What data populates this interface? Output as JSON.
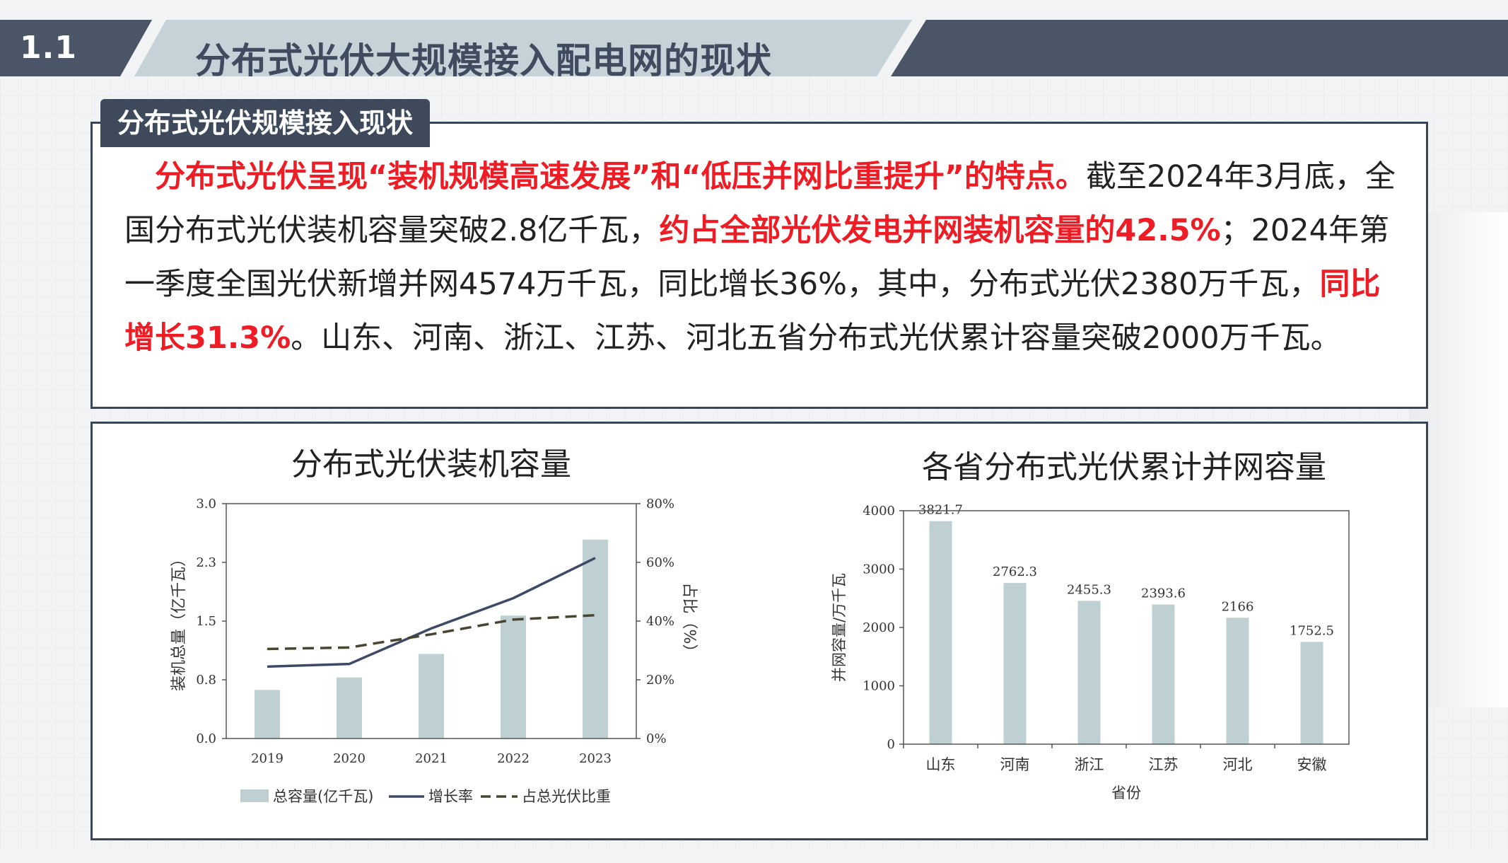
{
  "header": {
    "section_number": "1.1",
    "title": "分布式光伏大规模接入配电网的现状"
  },
  "section_label": "分布式光伏规模接入现状",
  "paragraph": {
    "s1": "分布式光伏呈现“装机规模高速发展”和“低压并网比重提升”的特点。",
    "s2": "截至2024年3月底，全国分布式光伏装机容量突破2.8亿千瓦，",
    "s3": "约占全部光伏发电并网装机容量的42.5%",
    "s4": "；2024年第一季度全国光伏新增并网4574万千瓦，同比增长36%，其中，分布式光伏2380万千瓦，",
    "s5": "同比增长31.3%",
    "s6": "。山东、河南、浙江、江苏、河北五省分布式光伏累计容量突破2000万千瓦。"
  },
  "colors": {
    "header_dark": "#4a5568",
    "header_light": "#c5d3d8",
    "highlight_red": "#ee1c24",
    "bar": "#bfd0d3",
    "growth_line": "#3d4a66",
    "share_line": "#4a4530"
  },
  "chart_data": [
    {
      "type": "bar",
      "title": "分布式光伏装机容量",
      "categories": [
        "2019",
        "2020",
        "2021",
        "2022",
        "2023"
      ],
      "ylabel": "装机总量（亿千瓦）",
      "y2label": "占比（%）",
      "ylim": [
        0,
        3.0
      ],
      "y2lim": [
        0,
        80
      ],
      "yticks": [
        "0.0",
        "0.8",
        "1.5",
        "2.3",
        "3.0"
      ],
      "y2ticks": [
        "0%",
        "20%",
        "40%",
        "60%",
        "80%"
      ],
      "series": [
        {
          "name": "总容量(亿千瓦)",
          "type": "bar",
          "axis": "left",
          "values": [
            0.62,
            0.78,
            1.08,
            1.57,
            2.54
          ]
        },
        {
          "name": "增长率",
          "type": "line",
          "axis": "right",
          "values": [
            24.5,
            25.4,
            37.5,
            47.8,
            61.5
          ]
        },
        {
          "name": "占总光伏比重",
          "type": "line",
          "axis": "right",
          "dashed": true,
          "values": [
            30.5,
            31.0,
            35.5,
            40.5,
            42.0
          ]
        }
      ],
      "legend_position": "bottom"
    },
    {
      "type": "bar",
      "title": "各省分布式光伏累计并网容量",
      "categories": [
        "山东",
        "河南",
        "浙江",
        "江苏",
        "河北",
        "安徽"
      ],
      "values": [
        3821.7,
        2762.3,
        2455.3,
        2393.6,
        2166,
        1752.5
      ],
      "data_labels": [
        "3821.7",
        "2762.3",
        "2455.3",
        "2393.6",
        "2166",
        "1752.5"
      ],
      "xlabel": "省份",
      "ylabel": "并网容量/万千瓦",
      "ylim": [
        0,
        4000
      ],
      "yticks": [
        "0",
        "1000",
        "2000",
        "3000",
        "4000"
      ]
    }
  ]
}
